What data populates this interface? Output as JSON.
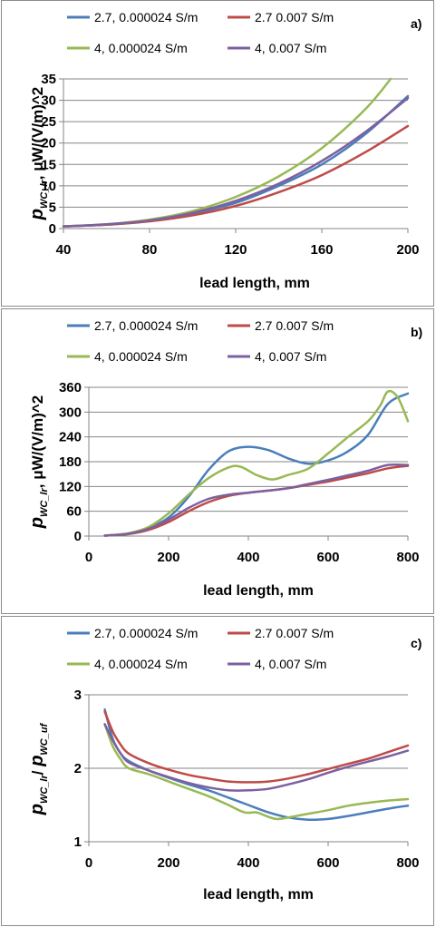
{
  "colors": {
    "series_1": "#4a7ebb",
    "series_2": "#be4b48",
    "series_3": "#98b954",
    "series_4": "#7d60a0",
    "gridline": "#868686",
    "frame": "#8c8c8c"
  },
  "legend_labels": [
    "2.7, 0.000024 S/m",
    "2.7 0.007 S/m",
    "4, 0.000024 S/m",
    "4, 0.007 S/m"
  ],
  "chart_data": [
    {
      "type": "line",
      "panel_label": "a)",
      "xlabel": "lead length, mm",
      "ylabel": {
        "symbol": "p",
        "subscript": "WC_lr",
        "rest": ",  μW/(V/m)^2"
      },
      "xlim": [
        40,
        200
      ],
      "ylim": [
        0,
        35
      ],
      "xticks": [
        40,
        80,
        120,
        160,
        200
      ],
      "yticks": [
        0,
        5,
        10,
        15,
        20,
        25,
        30,
        35
      ],
      "grid": "horizontal",
      "legend_position": "top",
      "series": [
        {
          "name": "2.7, 0.000024 S/m",
          "x": [
            40,
            60,
            80,
            100,
            120,
            140,
            160,
            180,
            200
          ],
          "y": [
            0.5,
            0.9,
            1.8,
            3.5,
            6.0,
            10.0,
            15.0,
            22.0,
            31.0
          ]
        },
        {
          "name": "2.7 0.007 S/m",
          "x": [
            40,
            60,
            80,
            100,
            120,
            140,
            160,
            180,
            200
          ],
          "y": [
            0.5,
            0.9,
            1.7,
            3.1,
            5.3,
            8.5,
            12.5,
            17.8,
            24.0
          ]
        },
        {
          "name": "4, 0.000024 S/m",
          "x": [
            40,
            60,
            80,
            100,
            120,
            140,
            160,
            180,
            192
          ],
          "y": [
            0.5,
            1.0,
            2.1,
            4.1,
            7.4,
            12.2,
            18.8,
            27.8,
            35.0
          ]
        },
        {
          "name": "4, 0.007 S/m",
          "x": [
            40,
            60,
            80,
            100,
            120,
            140,
            160,
            180,
            200
          ],
          "y": [
            0.5,
            1.0,
            1.9,
            3.7,
            6.5,
            10.5,
            15.8,
            22.5,
            30.5
          ]
        }
      ]
    },
    {
      "type": "line",
      "panel_label": "b)",
      "xlabel": "lead length, mm",
      "ylabel": {
        "symbol": "p",
        "subscript": "WC_lr",
        "rest": ",  μW/(V/m)^2"
      },
      "xlim": [
        0,
        800
      ],
      "ylim": [
        0,
        360
      ],
      "xticks": [
        0,
        200,
        400,
        600,
        800
      ],
      "yticks": [
        0,
        60,
        120,
        180,
        240,
        300,
        360
      ],
      "grid": "horizontal",
      "legend_position": "top",
      "series": [
        {
          "name": "2.7, 0.000024 S/m",
          "x": [
            40,
            100,
            150,
            200,
            250,
            300,
            350,
            400,
            450,
            500,
            550,
            600,
            650,
            700,
            750,
            800
          ],
          "y": [
            1,
            6,
            20,
            45,
            95,
            160,
            205,
            216,
            208,
            188,
            175,
            183,
            205,
            245,
            320,
            345
          ]
        },
        {
          "name": "2.7 0.007 S/m",
          "x": [
            40,
            100,
            150,
            200,
            250,
            300,
            350,
            400,
            450,
            500,
            550,
            600,
            650,
            700,
            750,
            800
          ],
          "y": [
            1,
            5,
            15,
            34,
            60,
            82,
            97,
            105,
            110,
            116,
            124,
            132,
            142,
            152,
            164,
            170
          ]
        },
        {
          "name": "4, 0.000024 S/m",
          "x": [
            40,
            100,
            150,
            200,
            250,
            300,
            350,
            380,
            420,
            460,
            500,
            550,
            600,
            650,
            700,
            730,
            750,
            775,
            800
          ],
          "y": [
            1,
            7,
            22,
            55,
            100,
            140,
            166,
            168,
            148,
            137,
            148,
            163,
            200,
            240,
            278,
            315,
            350,
            335,
            278
          ]
        },
        {
          "name": "4, 0.007 S/m",
          "x": [
            40,
            100,
            150,
            200,
            250,
            300,
            350,
            400,
            450,
            500,
            550,
            600,
            650,
            700,
            750,
            800
          ],
          "y": [
            1,
            6,
            18,
            40,
            68,
            90,
            100,
            105,
            110,
            116,
            126,
            136,
            147,
            158,
            172,
            172
          ]
        }
      ]
    },
    {
      "type": "line",
      "panel_label": "c)",
      "xlabel": "lead length, mm",
      "ylabel": {
        "symbol": "p",
        "subscript": "WC_lr",
        "rest": "/ ",
        "symbol2": "p",
        "subscript2": "WC_uf"
      },
      "xlim": [
        0,
        800
      ],
      "ylim": [
        1,
        3
      ],
      "xticks": [
        0,
        200,
        400,
        600,
        800
      ],
      "yticks": [
        1,
        2,
        3
      ],
      "grid": "horizontal",
      "legend_position": "top",
      "series": [
        {
          "name": "2.7, 0.000024 S/m",
          "x": [
            40,
            60,
            80,
            100,
            150,
            200,
            250,
            300,
            350,
            400,
            450,
            500,
            550,
            600,
            650,
            700,
            750,
            800
          ],
          "y": [
            2.8,
            2.4,
            2.2,
            2.1,
            1.97,
            1.87,
            1.78,
            1.7,
            1.6,
            1.5,
            1.4,
            1.33,
            1.3,
            1.31,
            1.35,
            1.4,
            1.45,
            1.49
          ]
        },
        {
          "name": "2.7 0.007 S/m",
          "x": [
            40,
            60,
            80,
            100,
            150,
            200,
            250,
            300,
            350,
            400,
            450,
            500,
            550,
            600,
            650,
            700,
            750,
            800
          ],
          "y": [
            2.77,
            2.5,
            2.32,
            2.2,
            2.07,
            1.98,
            1.91,
            1.86,
            1.82,
            1.81,
            1.82,
            1.86,
            1.92,
            1.99,
            2.06,
            2.13,
            2.22,
            2.31
          ]
        },
        {
          "name": "4, 0.000024 S/m",
          "x": [
            40,
            60,
            80,
            100,
            150,
            200,
            250,
            300,
            350,
            390,
            420,
            440,
            470,
            500,
            550,
            600,
            650,
            700,
            750,
            800
          ],
          "y": [
            2.6,
            2.3,
            2.12,
            2.0,
            1.92,
            1.82,
            1.72,
            1.62,
            1.5,
            1.4,
            1.4,
            1.36,
            1.31,
            1.33,
            1.38,
            1.43,
            1.49,
            1.53,
            1.56,
            1.58
          ]
        },
        {
          "name": "4, 0.007 S/m",
          "x": [
            40,
            60,
            80,
            100,
            150,
            200,
            250,
            300,
            350,
            400,
            450,
            500,
            550,
            600,
            650,
            700,
            750,
            800
          ],
          "y": [
            2.6,
            2.38,
            2.2,
            2.08,
            1.97,
            1.88,
            1.8,
            1.74,
            1.7,
            1.7,
            1.72,
            1.78,
            1.85,
            1.94,
            2.02,
            2.09,
            2.16,
            2.24
          ]
        }
      ]
    }
  ]
}
